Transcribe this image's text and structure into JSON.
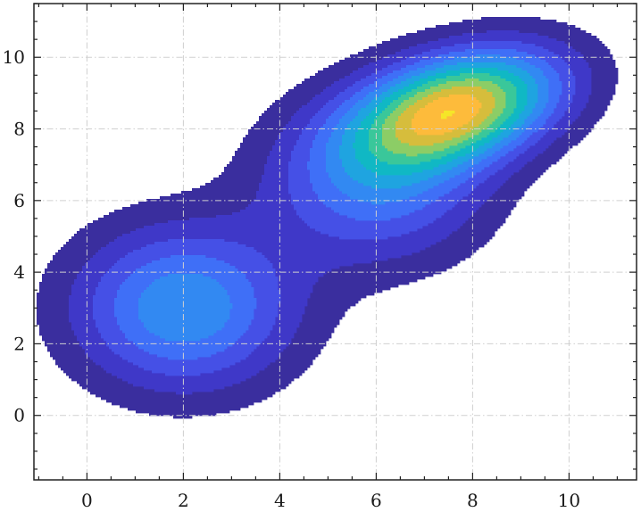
{
  "chart_data": {
    "type": "contourf",
    "title": "",
    "xlabel": "",
    "ylabel": "",
    "xlim": [
      -1.1,
      11.4
    ],
    "ylim": [
      -1.8,
      11.5
    ],
    "x_ticks": [
      0,
      2,
      4,
      6,
      8,
      10
    ],
    "y_ticks": [
      0,
      2,
      4,
      6,
      8,
      10
    ],
    "x_tick_labels": [
      "0",
      "2",
      "4",
      "6",
      "8",
      "10"
    ],
    "y_tick_labels": [
      "0",
      "2",
      "4",
      "6",
      "8",
      "10"
    ],
    "grid": true,
    "grid_style": "dash-dot",
    "grid_color": "#d0d0d0",
    "ticks_on_all_sides": true,
    "colormap": "parula",
    "levels": 12,
    "density_components": [
      {
        "center": [
          2.0,
          3.0
        ],
        "sigma_x": 1.6,
        "sigma_y": 1.6,
        "rho": 0.0,
        "peak_level": 0.55
      },
      {
        "center": [
          7.7,
          8.6
        ],
        "sigma_x": 1.5,
        "sigma_y": 1.15,
        "rho": 0.35,
        "peak_level": 1.0
      },
      {
        "center": [
          6.0,
          6.5
        ],
        "sigma_x": 1.6,
        "sigma_y": 1.6,
        "rho": 0.0,
        "peak_level": 0.42
      }
    ],
    "level_colors": [
      "#ffffff",
      "#3a2e9e",
      "#3f38c8",
      "#4550e6",
      "#3f6ff7",
      "#3289f2",
      "#1fa4e0",
      "#10b8c4",
      "#3ac79a",
      "#8ccd66",
      "#d6bd3c",
      "#fdbb3b",
      "#f5e628"
    ]
  }
}
